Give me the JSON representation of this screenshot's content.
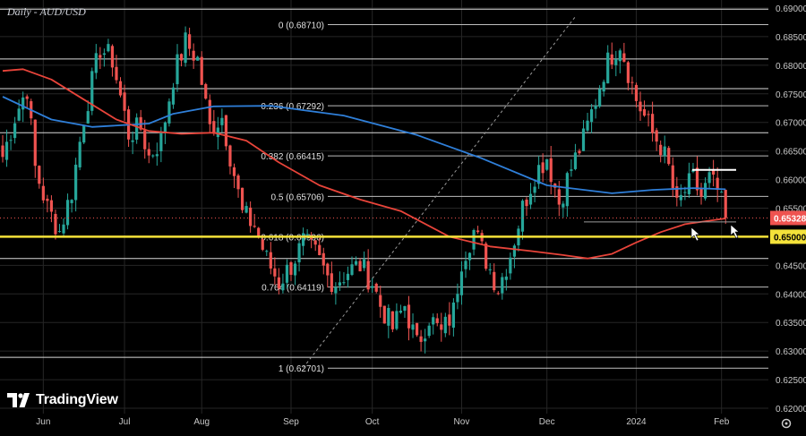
{
  "title": "Daily - AUD/USD",
  "logo_text": "TradingView",
  "colors": {
    "background": "#000000",
    "grid": "#262626",
    "fib_line": "#bdbdbd",
    "up_candle": "#26a69a",
    "down_candle": "#ef5350",
    "ma_blue": "#2f7fd9",
    "ma_red": "#e8443a",
    "support_line": "#f4e23a",
    "price_tag": "#ef5350",
    "axis_text": "#c8c8c8"
  },
  "chart_data": {
    "type": "candlestick",
    "title": "Daily - AUD/USD",
    "ylim": [
      0.6195,
      0.6905
    ],
    "y_ticks": [
      "0.69000",
      "0.68500",
      "0.68000",
      "0.67500",
      "0.67000",
      "0.66500",
      "0.66000",
      "0.65500",
      "0.65000",
      "0.64500",
      "0.64000",
      "0.63500",
      "0.63000",
      "0.62500",
      "0.62000"
    ],
    "x_ticks": [
      {
        "label": "Jun",
        "idx": 10
      },
      {
        "label": "Jul",
        "idx": 30
      },
      {
        "label": "Aug",
        "idx": 49
      },
      {
        "label": "Sep",
        "idx": 71
      },
      {
        "label": "Oct",
        "idx": 91
      },
      {
        "label": "Nov",
        "idx": 113
      },
      {
        "label": "Dec",
        "idx": 134
      },
      {
        "label": "2024",
        "idx": 156
      },
      {
        "label": "Feb",
        "idx": 177
      }
    ],
    "fib_levels": [
      {
        "label": "0 (0.68710)",
        "value": 0.6871
      },
      {
        "label": "0.236 (0.67292)",
        "value": 0.67292
      },
      {
        "label": "0.382 (0.66415)",
        "value": 0.66415
      },
      {
        "label": "0.5 (0.65706)",
        "value": 0.65706
      },
      {
        "label": "0.618 (0.64996)",
        "value": 0.64996
      },
      {
        "label": "0.764 (0.64119)",
        "value": 0.64119
      },
      {
        "label": "1 (0.62701)",
        "value": 0.62701
      }
    ],
    "horizontal_levels": [
      0.6898,
      0.6811,
      0.6759,
      0.6682,
      0.6462,
      0.6289
    ],
    "support_level": 0.65,
    "support_label": "0.65000",
    "last_price": 0.65328,
    "last_price_label": "0.65328",
    "range_top": 0.6617,
    "range_bottom": 0.6526,
    "trend_line": {
      "from": [
        74,
        0.6271
      ],
      "to": [
        141,
        0.6885
      ]
    },
    "ohlc_anchor_closes": [
      [
        0,
        0.664
      ],
      [
        3,
        0.671
      ],
      [
        6,
        0.676
      ],
      [
        8,
        0.662
      ],
      [
        11,
        0.655
      ],
      [
        14,
        0.651
      ],
      [
        17,
        0.658
      ],
      [
        20,
        0.671
      ],
      [
        24,
        0.683
      ],
      [
        27,
        0.681
      ],
      [
        31,
        0.668
      ],
      [
        34,
        0.669
      ],
      [
        36,
        0.664
      ],
      [
        39,
        0.667
      ],
      [
        42,
        0.678
      ],
      [
        45,
        0.684
      ],
      [
        48,
        0.681
      ],
      [
        51,
        0.669
      ],
      [
        54,
        0.671
      ],
      [
        57,
        0.661
      ],
      [
        59,
        0.654
      ],
      [
        62,
        0.652
      ],
      [
        65,
        0.646
      ],
      [
        68,
        0.642
      ],
      [
        71,
        0.645
      ],
      [
        74,
        0.649
      ],
      [
        77,
        0.647
      ],
      [
        80,
        0.643
      ],
      [
        82,
        0.642
      ],
      [
        85,
        0.644
      ],
      [
        88,
        0.645
      ],
      [
        91,
        0.642
      ],
      [
        93,
        0.638
      ],
      [
        96,
        0.634
      ],
      [
        99,
        0.638
      ],
      [
        102,
        0.631
      ],
      [
        105,
        0.636
      ],
      [
        108,
        0.633
      ],
      [
        111,
        0.637
      ],
      [
        113,
        0.646
      ],
      [
        116,
        0.651
      ],
      [
        119,
        0.646
      ],
      [
        122,
        0.641
      ],
      [
        125,
        0.647
      ],
      [
        128,
        0.655
      ],
      [
        131,
        0.661
      ],
      [
        134,
        0.664
      ],
      [
        137,
        0.656
      ],
      [
        140,
        0.662
      ],
      [
        143,
        0.667
      ],
      [
        146,
        0.674
      ],
      [
        148,
        0.679
      ],
      [
        150,
        0.682
      ],
      [
        152,
        0.684
      ],
      [
        154,
        0.679
      ],
      [
        156,
        0.674
      ],
      [
        158,
        0.671
      ],
      [
        160,
        0.668
      ],
      [
        162,
        0.666
      ],
      [
        164,
        0.662
      ],
      [
        166,
        0.655
      ],
      [
        168,
        0.658
      ],
      [
        170,
        0.66
      ],
      [
        172,
        0.657
      ],
      [
        174,
        0.66
      ],
      [
        176,
        0.658
      ],
      [
        178,
        0.6533
      ]
    ],
    "ma_blue": [
      [
        0,
        0.6745
      ],
      [
        12,
        0.6705
      ],
      [
        22,
        0.6692
      ],
      [
        36,
        0.6698
      ],
      [
        42,
        0.6715
      ],
      [
        52,
        0.6728
      ],
      [
        66,
        0.6729
      ],
      [
        84,
        0.6712
      ],
      [
        102,
        0.6678
      ],
      [
        118,
        0.6637
      ],
      [
        134,
        0.659
      ],
      [
        150,
        0.6576
      ],
      [
        160,
        0.6582
      ],
      [
        170,
        0.6585
      ],
      [
        178,
        0.6583
      ]
    ],
    "ma_red": [
      [
        0,
        0.679
      ],
      [
        5,
        0.6793
      ],
      [
        12,
        0.6775
      ],
      [
        20,
        0.674
      ],
      [
        28,
        0.6705
      ],
      [
        36,
        0.6685
      ],
      [
        44,
        0.668
      ],
      [
        52,
        0.6682
      ],
      [
        60,
        0.6668
      ],
      [
        68,
        0.663
      ],
      [
        78,
        0.659
      ],
      [
        88,
        0.6565
      ],
      [
        98,
        0.6545
      ],
      [
        110,
        0.65
      ],
      [
        120,
        0.6483
      ],
      [
        130,
        0.6475
      ],
      [
        138,
        0.6468
      ],
      [
        144,
        0.6462
      ],
      [
        150,
        0.647
      ],
      [
        156,
        0.649
      ],
      [
        162,
        0.6508
      ],
      [
        168,
        0.6522
      ],
      [
        174,
        0.6528
      ],
      [
        178,
        0.6532
      ]
    ]
  }
}
